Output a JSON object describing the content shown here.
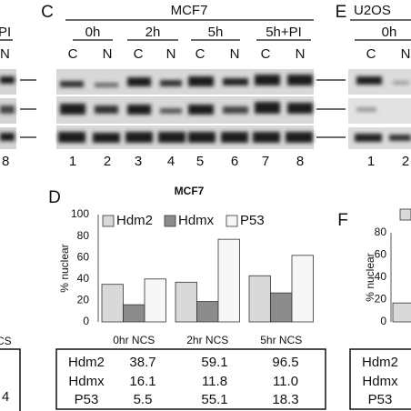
{
  "panel_b": {
    "timepoint": "PI",
    "lane_label": "N",
    "lane_number": "8"
  },
  "panel_c": {
    "letter": "C",
    "title": "MCF7",
    "timepoints": [
      "0h",
      "2h",
      "5h",
      "5h+PI"
    ],
    "lanes": [
      "C",
      "N",
      "C",
      "N",
      "C",
      "N",
      "C",
      "N"
    ],
    "lane_numbers": [
      "1",
      "2",
      "3",
      "4",
      "5",
      "6",
      "7",
      "8"
    ]
  },
  "panel_e": {
    "letter": "E",
    "title": "U2OS",
    "timepoints": [
      "0h"
    ],
    "lanes": [
      "C",
      "N"
    ],
    "lane_numbers": [
      "1",
      "2"
    ]
  },
  "chart_data": [
    {
      "type": "bar",
      "title": "MCF7",
      "y_label": "% nuclear",
      "categories": [
        "0hr NCS",
        "2hr NCS",
        "5hr NCS"
      ],
      "series": [
        {
          "name": "Hdm2",
          "color": "#d9d9d9",
          "values": [
            35,
            37,
            43
          ]
        },
        {
          "name": "Hdmx",
          "color": "#8c8c8c",
          "values": [
            16,
            19,
            27
          ]
        },
        {
          "name": "P53",
          "color": "#f7f7f7",
          "values": [
            40,
            77,
            62
          ]
        }
      ],
      "ylim": [
        0,
        100
      ],
      "yticks": [
        0,
        20,
        40,
        60,
        80,
        100
      ],
      "grid": false
    },
    {
      "type": "bar",
      "y_label": "% nuclear",
      "categories": [
        null
      ],
      "series": [
        {
          "color": "#d9d9d9",
          "values": [
            17
          ]
        }
      ],
      "ylim": [
        0,
        80
      ],
      "yticks": [
        0,
        20,
        40,
        60,
        80
      ],
      "grid": false
    }
  ],
  "panel_d": {
    "letter": "D",
    "table": {
      "rows": [
        [
          "Hdm2",
          "38.7",
          "59.1",
          "96.5"
        ],
        [
          "Hdmx",
          "16.1",
          "11.8",
          "11.0"
        ],
        [
          "P53",
          "5.5",
          "55.1",
          "18.3"
        ]
      ]
    }
  },
  "panel_f": {
    "letter": "F",
    "table": {
      "rows": [
        [
          "Hdm2"
        ],
        [
          "Hdmx"
        ],
        [
          "P53"
        ]
      ]
    }
  },
  "left_fragments": {
    "x_label": "CS",
    "table_value": "4"
  }
}
